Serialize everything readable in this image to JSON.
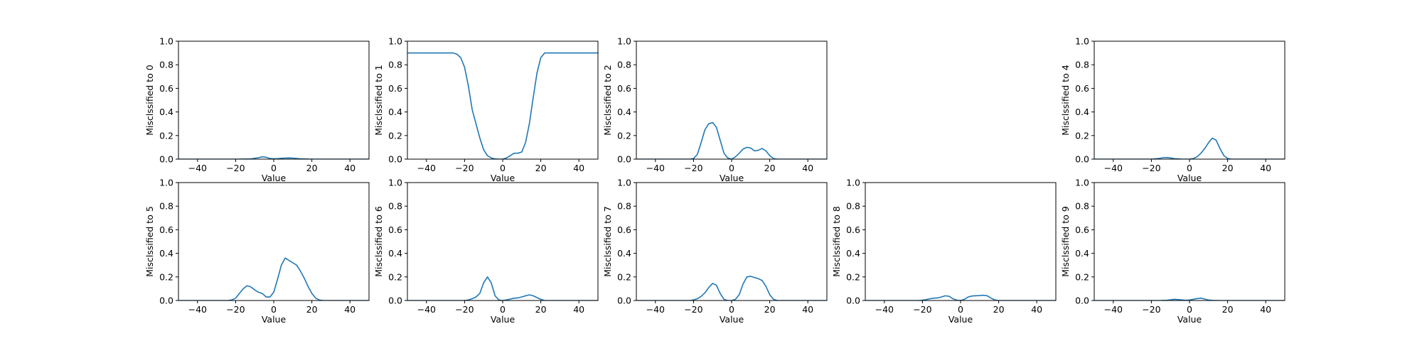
{
  "chart_data": {
    "type": "line",
    "line_color": "#1f77b4",
    "xlim": [
      -50,
      50
    ],
    "ylim": [
      0,
      1
    ],
    "xticks": [
      -40,
      -20,
      0,
      20,
      40
    ],
    "yticks": [
      0.0,
      0.2,
      0.4,
      0.6,
      0.8,
      1.0
    ],
    "xtick_labels": [
      "−40",
      "−20",
      "0",
      "20",
      "40"
    ],
    "ytick_labels": [
      "0.0",
      "0.2",
      "0.4",
      "0.6",
      "0.8",
      "1.0"
    ],
    "grid": false,
    "legend": "none",
    "panels": [
      {
        "xlabel": "Value",
        "ylabel": "Misclssified to 0",
        "x": [
          -50,
          -20,
          -12,
          -8,
          -6,
          -4,
          -2,
          0,
          2,
          4,
          6,
          8,
          10,
          12,
          14,
          20,
          50
        ],
        "y": [
          0,
          0,
          0.002,
          0.012,
          0.02,
          0.016,
          0.006,
          0.003,
          0.004,
          0.007,
          0.009,
          0.01,
          0.009,
          0.006,
          0.003,
          0,
          0
        ]
      },
      {
        "xlabel": "Value",
        "ylabel": "Misclssified to 1",
        "x": [
          -50,
          -28,
          -26,
          -24,
          -22,
          -20,
          -18,
          -16,
          -14,
          -12,
          -10,
          -8,
          -6,
          -4,
          -2,
          0,
          2,
          4,
          6,
          8,
          10,
          12,
          14,
          16,
          18,
          20,
          22,
          24,
          26,
          50
        ],
        "y": [
          0.9,
          0.9,
          0.9,
          0.89,
          0.86,
          0.78,
          0.62,
          0.42,
          0.3,
          0.18,
          0.08,
          0.03,
          0.01,
          0.002,
          0.0,
          0.0,
          0.01,
          0.03,
          0.05,
          0.05,
          0.06,
          0.14,
          0.3,
          0.52,
          0.73,
          0.86,
          0.9,
          0.9,
          0.9,
          0.9
        ]
      },
      {
        "xlabel": "Value",
        "ylabel": "Misclssified to 2",
        "x": [
          -50,
          -22,
          -20,
          -18,
          -16,
          -14,
          -12,
          -10,
          -8,
          -6,
          -4,
          -2,
          0,
          2,
          4,
          6,
          8,
          10,
          12,
          14,
          16,
          18,
          20,
          22,
          24,
          50
        ],
        "y": [
          0,
          0,
          0.005,
          0.04,
          0.14,
          0.25,
          0.3,
          0.31,
          0.27,
          0.16,
          0.05,
          0.01,
          0.0,
          0.02,
          0.05,
          0.085,
          0.1,
          0.095,
          0.07,
          0.075,
          0.09,
          0.07,
          0.03,
          0.005,
          0,
          0
        ]
      },
      {
        "xlabel": "Value",
        "ylabel": "Misclssified to 4",
        "x": [
          -50,
          -20,
          -16,
          -14,
          -12,
          -10,
          -8,
          -4,
          0,
          2,
          4,
          6,
          8,
          10,
          12,
          14,
          16,
          18,
          20,
          22,
          50
        ],
        "y": [
          0,
          0,
          0.006,
          0.012,
          0.014,
          0.01,
          0.004,
          0.0,
          0.0,
          0.005,
          0.02,
          0.05,
          0.09,
          0.14,
          0.178,
          0.16,
          0.09,
          0.03,
          0.006,
          0,
          0
        ]
      },
      {
        "xlabel": "Value",
        "ylabel": "Misclssified to 5",
        "x": [
          -50,
          -24,
          -22,
          -20,
          -18,
          -16,
          -14,
          -12,
          -10,
          -8,
          -6,
          -4,
          -2,
          0,
          2,
          4,
          6,
          8,
          10,
          12,
          14,
          16,
          18,
          20,
          22,
          24,
          26,
          50
        ],
        "y": [
          0,
          0,
          0.005,
          0.02,
          0.06,
          0.1,
          0.125,
          0.115,
          0.09,
          0.07,
          0.06,
          0.03,
          0.03,
          0.07,
          0.18,
          0.3,
          0.36,
          0.34,
          0.32,
          0.3,
          0.25,
          0.19,
          0.12,
          0.06,
          0.02,
          0.004,
          0,
          0
        ]
      },
      {
        "xlabel": "Value",
        "ylabel": "Misclssified to 6",
        "x": [
          -50,
          -20,
          -18,
          -16,
          -14,
          -12,
          -10,
          -8,
          -6,
          -4,
          -2,
          0,
          2,
          4,
          6,
          8,
          10,
          12,
          14,
          16,
          18,
          20,
          22,
          50
        ],
        "y": [
          0,
          0,
          0.005,
          0.015,
          0.03,
          0.06,
          0.15,
          0.2,
          0.15,
          0.04,
          0.005,
          0.0,
          0.005,
          0.012,
          0.02,
          0.022,
          0.03,
          0.04,
          0.048,
          0.04,
          0.025,
          0.01,
          0,
          0
        ]
      },
      {
        "xlabel": "Value",
        "ylabel": "Misclssified to 7",
        "x": [
          -50,
          -22,
          -20,
          -18,
          -16,
          -14,
          -12,
          -10,
          -8,
          -6,
          -4,
          -2,
          0,
          2,
          4,
          6,
          8,
          10,
          12,
          14,
          16,
          18,
          20,
          22,
          24,
          50
        ],
        "y": [
          0,
          0,
          0.005,
          0.015,
          0.035,
          0.065,
          0.11,
          0.145,
          0.13,
          0.06,
          0.01,
          0.0,
          0.0,
          0.01,
          0.05,
          0.14,
          0.2,
          0.205,
          0.195,
          0.185,
          0.17,
          0.12,
          0.05,
          0.01,
          0,
          0
        ]
      },
      {
        "xlabel": "Value",
        "ylabel": "Misclssified to 8",
        "x": [
          -50,
          -22,
          -20,
          -18,
          -16,
          -14,
          -12,
          -10,
          -8,
          -6,
          -4,
          -2,
          0,
          2,
          4,
          6,
          8,
          10,
          12,
          14,
          16,
          18,
          20,
          50
        ],
        "y": [
          0,
          0,
          0.003,
          0.008,
          0.015,
          0.02,
          0.022,
          0.03,
          0.04,
          0.036,
          0.015,
          0.003,
          0.0,
          0.01,
          0.03,
          0.038,
          0.04,
          0.042,
          0.045,
          0.04,
          0.02,
          0.005,
          0,
          0
        ]
      },
      {
        "xlabel": "Value",
        "ylabel": "Misclssified to 9",
        "x": [
          -50,
          -16,
          -12,
          -10,
          -8,
          -6,
          -4,
          -2,
          0,
          2,
          4,
          6,
          8,
          10,
          12,
          16,
          50
        ],
        "y": [
          0,
          0,
          0.002,
          0.006,
          0.01,
          0.008,
          0.005,
          0.002,
          0.004,
          0.01,
          0.016,
          0.02,
          0.012,
          0.004,
          0.001,
          0,
          0
        ]
      }
    ]
  }
}
